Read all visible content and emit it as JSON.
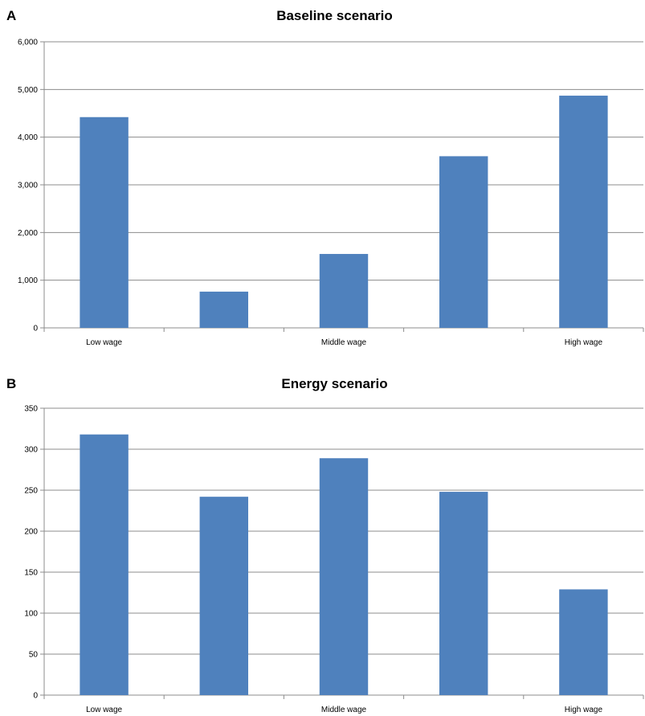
{
  "chart_data": [
    {
      "type": "bar",
      "panel_label": "A",
      "title": "Baseline scenario",
      "categories": [
        "Low wage",
        "",
        "Middle wage",
        "",
        "High wage"
      ],
      "values": [
        4420,
        760,
        1550,
        3600,
        4870
      ],
      "ylim": [
        0,
        6000
      ],
      "yticks": [
        0,
        1000,
        2000,
        3000,
        4000,
        5000,
        6000
      ],
      "ytick_labels": [
        "0",
        "1,000",
        "2,000",
        "3,000",
        "4,000",
        "5,000",
        "6,000"
      ],
      "grid": true,
      "bar_color": "#4f81bd"
    },
    {
      "type": "bar",
      "panel_label": "B",
      "title": "Energy scenario",
      "categories": [
        "Low wage",
        "",
        "Middle wage",
        "",
        "High wage"
      ],
      "values": [
        318,
        242,
        289,
        248,
        129
      ],
      "ylim": [
        0,
        350
      ],
      "yticks": [
        0,
        50,
        100,
        150,
        200,
        250,
        300,
        350
      ],
      "ytick_labels": [
        "0",
        "50",
        "100",
        "150",
        "200",
        "250",
        "300",
        "350"
      ],
      "grid": true,
      "bar_color": "#4f81bd"
    }
  ]
}
